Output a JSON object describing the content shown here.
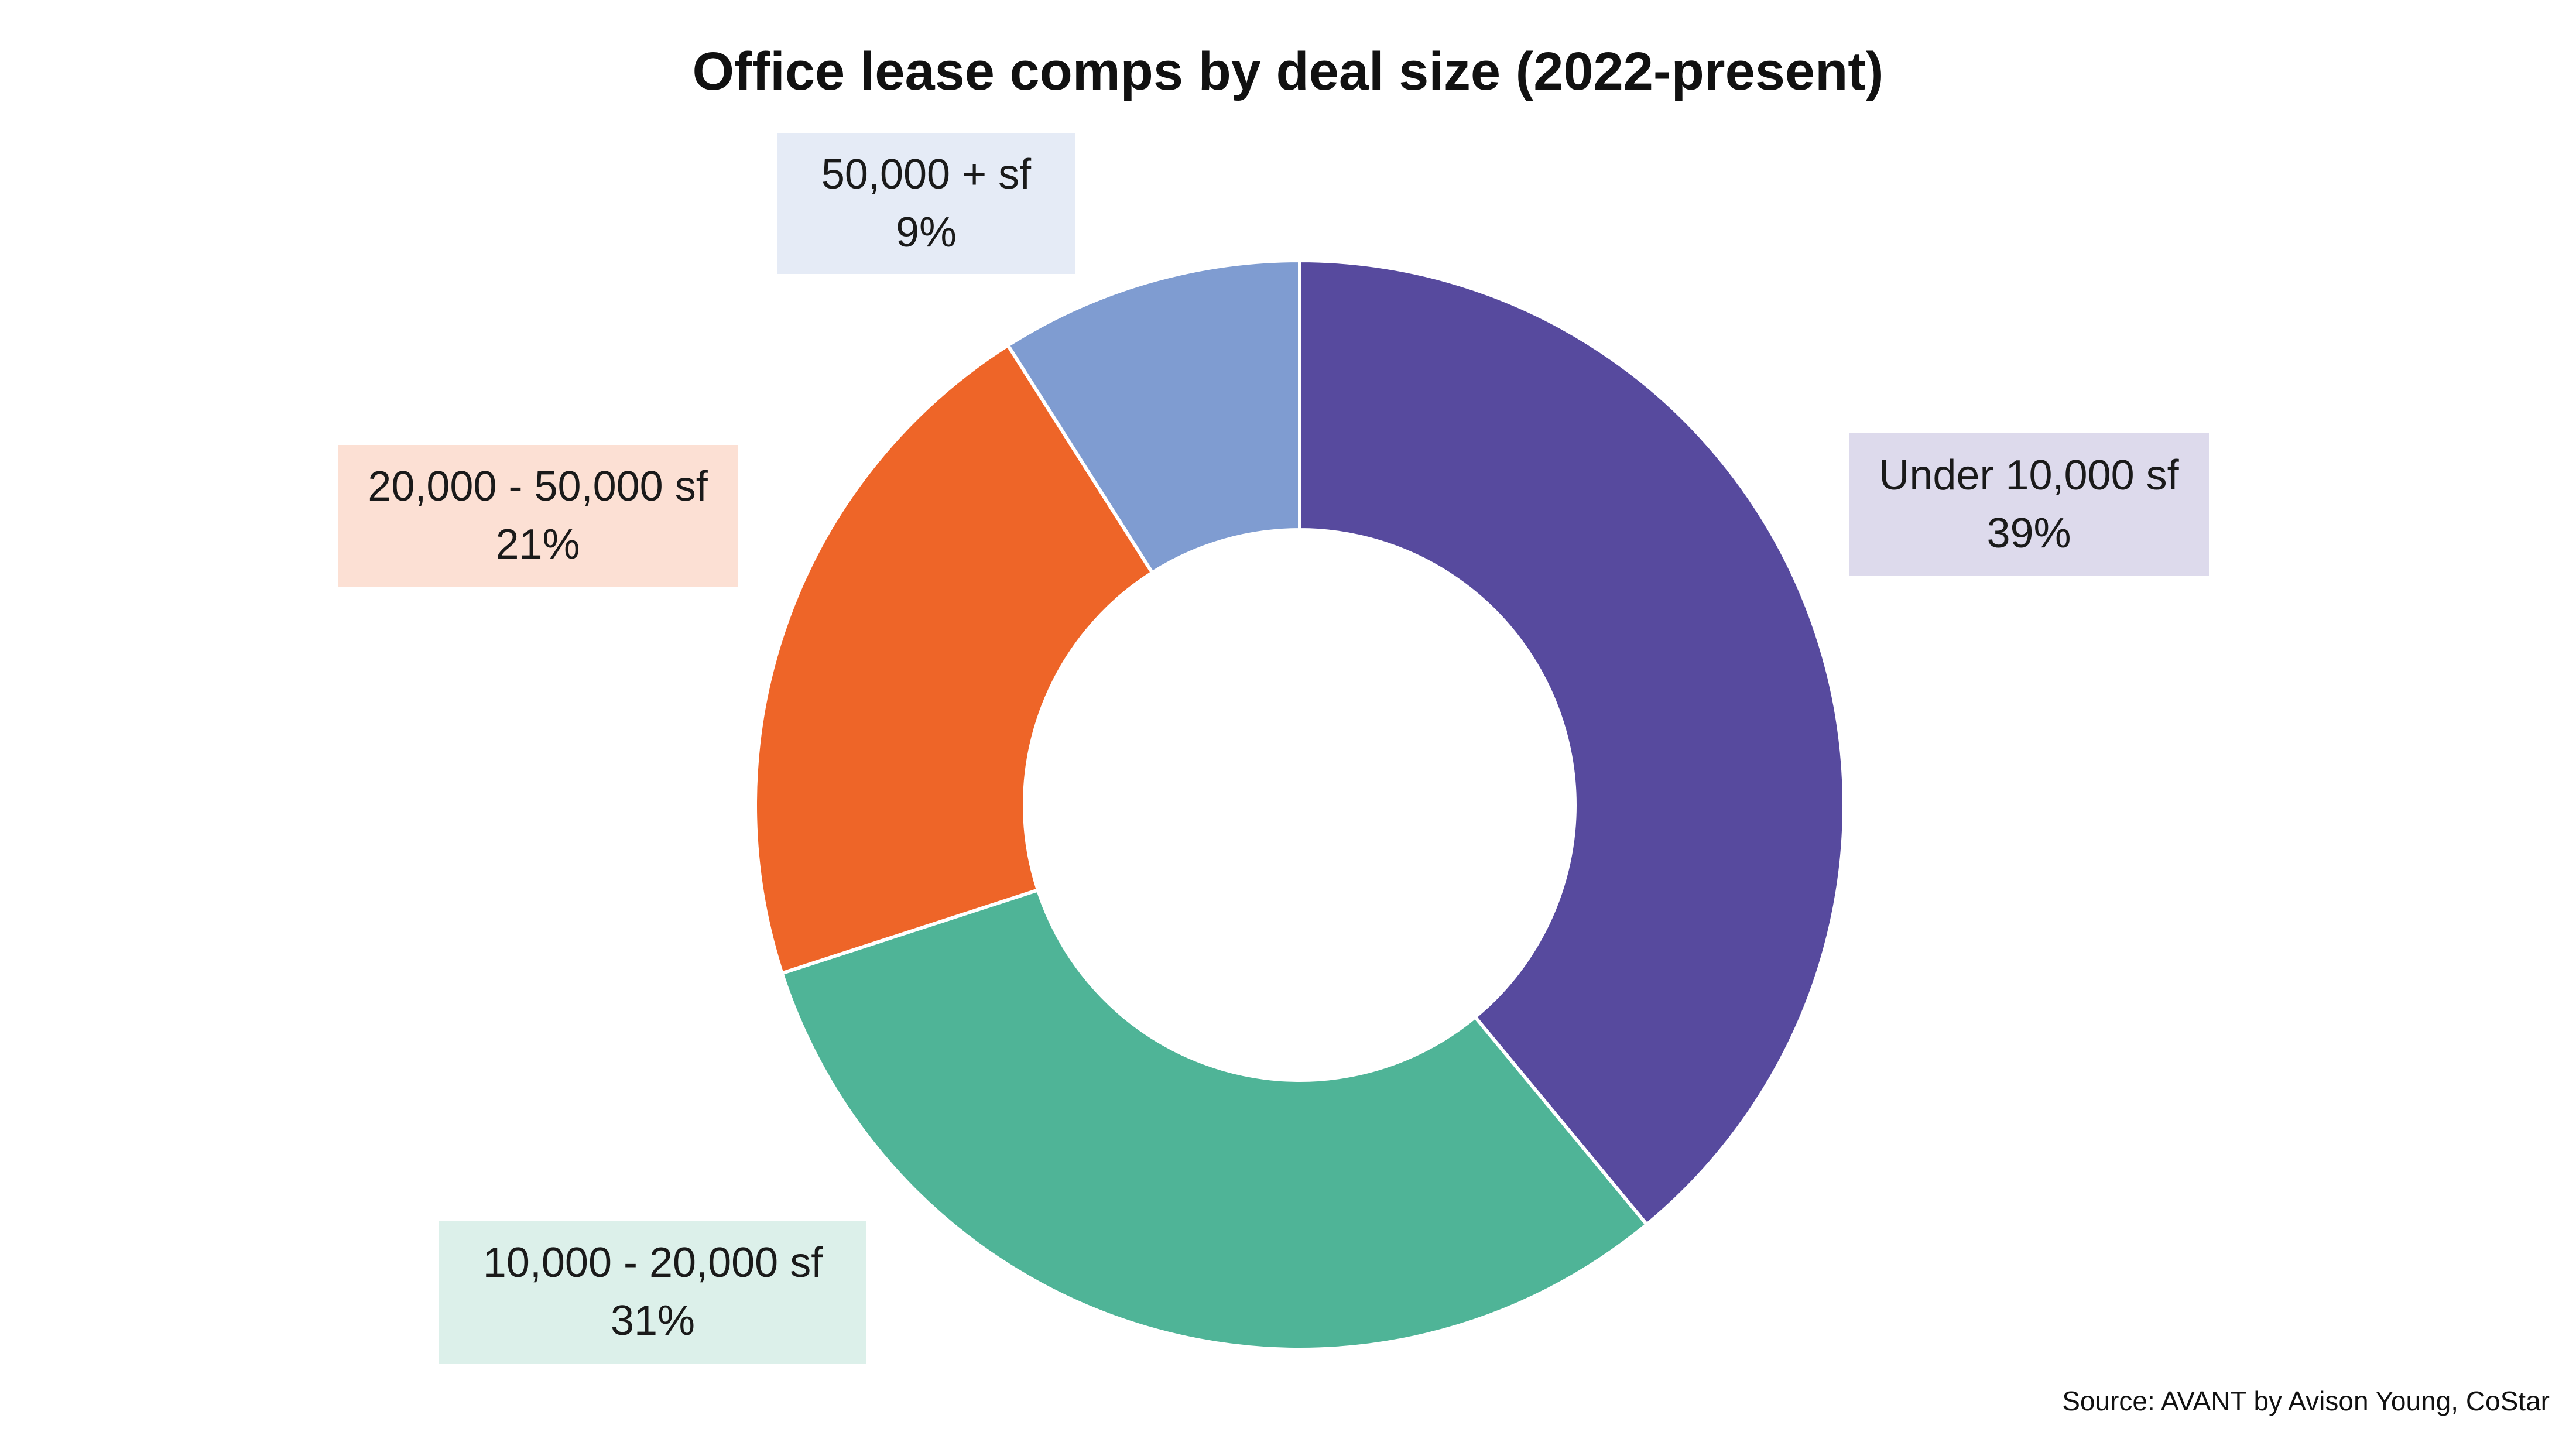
{
  "chart_data": {
    "type": "pie",
    "title": "Office lease comps by deal size (2022-present)",
    "source": "Source: AVANT by Avison Young, CoStar",
    "slices": [
      {
        "name": "Under 10,000 sf",
        "value": 39,
        "value_label": "39%",
        "color": "#574A9E",
        "label_bg": "#DDDAEC"
      },
      {
        "name": "10,000 - 20,000 sf",
        "value": 31,
        "value_label": "31%",
        "color": "#4FB497",
        "label_bg": "#DCF0EA"
      },
      {
        "name": "20,000 - 50,000 sf",
        "value": 21,
        "value_label": "21%",
        "color": "#EE6528",
        "label_bg": "#FCE0D4"
      },
      {
        "name": "50,000 + sf",
        "value": 9,
        "value_label": "9%",
        "color": "#7F9CD1",
        "label_bg": "#E5EBF6"
      }
    ]
  }
}
